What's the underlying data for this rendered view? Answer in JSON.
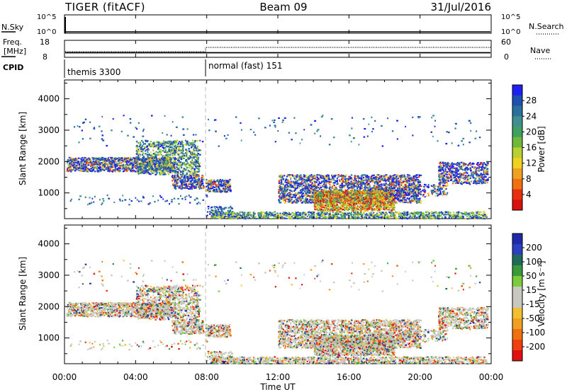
{
  "header": {
    "radar": "TIGER (fitACF)",
    "beam": "Beam 09",
    "date": "31/Jul/2016"
  },
  "panels": {
    "nsky_label": "N.Sky",
    "nsearch_label": "N.Search",
    "nsky_ticks": [
      "10^5",
      "10^0"
    ],
    "nsearch_ticks": [
      "10^5",
      "10^0"
    ],
    "freq_label": "Freq.",
    "freq_unit": "[MHz]",
    "freq_ticks": [
      "18",
      "8"
    ],
    "nave_label": "Nave",
    "nave_ticks": [
      "60",
      "0"
    ],
    "cpid_label": "CPID",
    "cpid_segments": [
      {
        "label": "themis 3300",
        "start_hour": 0,
        "end_hour": 8
      },
      {
        "label": "normal (fast) 151",
        "start_hour": 8,
        "end_hour": 24
      }
    ]
  },
  "chart_data": [
    {
      "type": "heatmap",
      "title": "",
      "xlabel": "Time UT",
      "ylabel": "Slant Range [km]",
      "xlim": [
        0,
        24
      ],
      "ylim": [
        180,
        4600
      ],
      "x_ticks": [
        "00:00",
        "04:00",
        "08:00",
        "12:00",
        "16:00",
        "20:00",
        "00:00"
      ],
      "y_ticks": [
        1000,
        2000,
        3000,
        4000
      ],
      "colorbar": {
        "label": "Power [dB]",
        "ticks": [
          "28",
          "24",
          "20",
          "16",
          "12",
          "8",
          "4"
        ],
        "colors": [
          "#1f1ff0",
          "#1f4fb0",
          "#2a6f9e",
          "#3f8f8f",
          "#3fa060",
          "#70b83a",
          "#b8d030",
          "#f0d020",
          "#f0a020",
          "#f07010",
          "#e83010",
          "#d81010"
        ]
      }
    },
    {
      "type": "heatmap",
      "title": "",
      "xlabel": "Time UT",
      "ylabel": "Slant Range [km]",
      "xlim": [
        0,
        24
      ],
      "ylim": [
        180,
        4600
      ],
      "x_ticks": [
        "00:00",
        "04:00",
        "08:00",
        "12:00",
        "16:00",
        "20:00",
        "00:00"
      ],
      "y_ticks": [
        1000,
        2000,
        3000,
        4000
      ],
      "colorbar": {
        "label": "Velocity [m s⁻¹]",
        "ticks": [
          "200",
          "100",
          "50",
          "15",
          "-15",
          "-50",
          "-100",
          "-200"
        ],
        "colors": [
          "#1e2aa8",
          "#2a40c0",
          "#1f6a5a",
          "#3a9a3a",
          "#7acc3a",
          "#c8c8c0",
          "#c8c8c0",
          "#f0c030",
          "#f0a020",
          "#f07010",
          "#f04010",
          "#e01010"
        ]
      }
    }
  ],
  "bottom_axis_label": "Time UT"
}
